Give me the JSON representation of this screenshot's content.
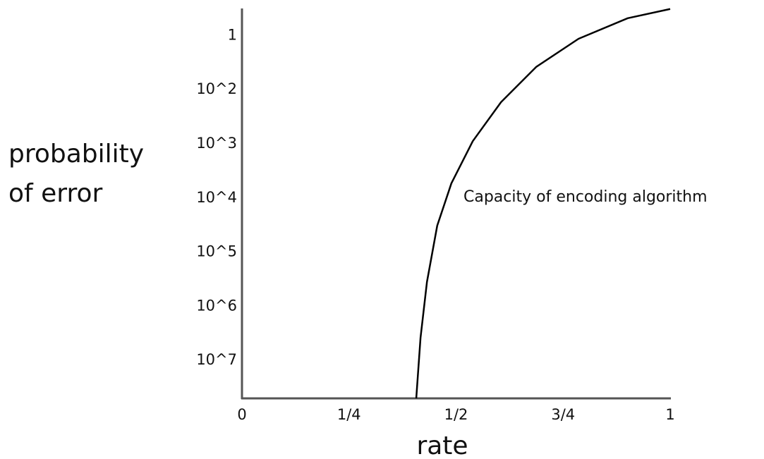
{
  "chart_data": {
    "type": "line",
    "xlabel": "rate",
    "ylabel": [
      "probability",
      "of error"
    ],
    "annotation": "Capacity of encoding algorithm",
    "xlim": [
      0,
      1
    ],
    "xticks": [
      0,
      {
        "value": 0.25,
        "label": "1/4"
      },
      {
        "value": 0.5,
        "label": "1/2"
      },
      {
        "value": 0.75,
        "label": "3/4"
      },
      1
    ],
    "ylim": [
      7.7,
      0.5
    ],
    "yticks": [
      {
        "value": 1,
        "label": "1"
      },
      {
        "value": 2,
        "label": "10^2"
      },
      {
        "value": 3,
        "label": "10^3"
      },
      {
        "value": 4,
        "label": "10^4"
      },
      {
        "value": 5,
        "label": "10^5"
      },
      {
        "value": 6,
        "label": "10^6"
      },
      {
        "value": 7,
        "label": "10^7"
      }
    ],
    "grid": false,
    "series": [
      {
        "color": "#000000",
        "x": [
          0.407,
          0.417,
          0.432,
          0.456,
          0.489,
          0.539,
          0.605,
          0.687,
          0.786,
          0.901,
          1.0
        ],
        "values": [
          7.7,
          6.58,
          5.55,
          4.51,
          3.73,
          2.95,
          2.23,
          1.58,
          1.06,
          0.68,
          0.51
        ]
      }
    ]
  }
}
